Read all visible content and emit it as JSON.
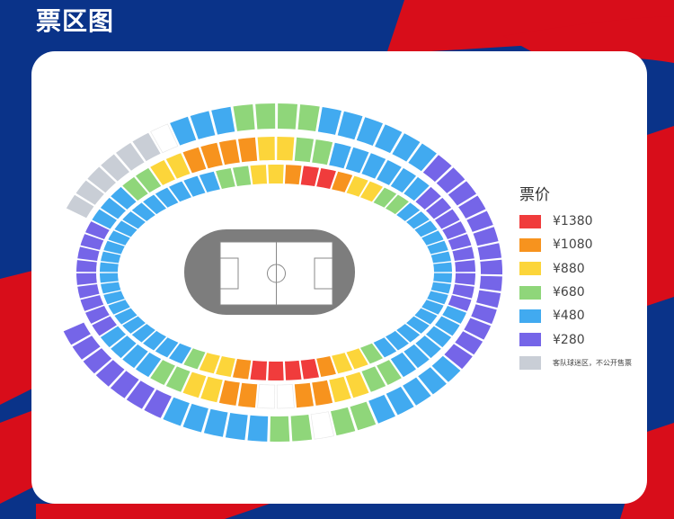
{
  "title": "票区图",
  "colors": {
    "background_blue": "#0a3389",
    "background_red": "#d80d1a"
  },
  "legend": {
    "title": "票价",
    "items": [
      {
        "key": "1380",
        "label": "¥1380",
        "color": "#f03c3c"
      },
      {
        "key": "1080",
        "label": "¥1080",
        "color": "#f7931e"
      },
      {
        "key": "880",
        "label": "¥880",
        "color": "#fcd53a"
      },
      {
        "key": "680",
        "label": "¥680",
        "color": "#8fd67a"
      },
      {
        "key": "480",
        "label": "¥480",
        "color": "#41aaf0"
      },
      {
        "key": "280",
        "label": "¥280",
        "color": "#7565e8"
      },
      {
        "key": "away",
        "label": "客队球迷区，不公开售票",
        "color": "#c9ced6"
      }
    ]
  },
  "rings": {
    "outer": [
      [
        "away",
        6
      ],
      [
        "gap",
        1
      ],
      [
        "480",
        3
      ],
      [
        "680",
        4
      ],
      [
        "480",
        6
      ],
      [
        "280",
        14
      ],
      [
        "480",
        5
      ],
      [
        "680",
        2
      ],
      [
        "gap",
        1
      ],
      [
        "680",
        2
      ],
      [
        "480",
        5
      ],
      [
        "280",
        7
      ]
    ],
    "middle": [
      [
        "280",
        4
      ],
      [
        "480",
        3
      ],
      [
        "680",
        2
      ],
      [
        "880",
        2
      ],
      [
        "1080",
        4
      ],
      [
        "880",
        2
      ],
      [
        "680",
        2
      ],
      [
        "480",
        6
      ],
      [
        "280",
        10
      ],
      [
        "480",
        6
      ],
      [
        "680",
        2
      ],
      [
        "880",
        2
      ],
      [
        "1080",
        2
      ],
      [
        "gap",
        2
      ],
      [
        "1080",
        2
      ],
      [
        "880",
        2
      ],
      [
        "680",
        2
      ],
      [
        "480",
        4
      ],
      [
        "280",
        5
      ]
    ],
    "inner": [
      [
        "480",
        12
      ],
      [
        "680",
        2
      ],
      [
        "880",
        2
      ],
      [
        "1080",
        1
      ],
      [
        "1380",
        2
      ],
      [
        "1080",
        1
      ],
      [
        "880",
        2
      ],
      [
        "680",
        2
      ],
      [
        "480",
        16
      ],
      [
        "680",
        1
      ],
      [
        "880",
        2
      ],
      [
        "1080",
        1
      ],
      [
        "1380",
        4
      ],
      [
        "1080",
        1
      ],
      [
        "880",
        2
      ],
      [
        "680",
        1
      ],
      [
        "480",
        10
      ]
    ]
  }
}
